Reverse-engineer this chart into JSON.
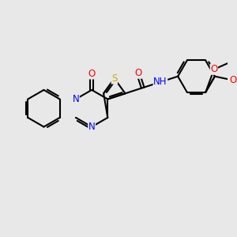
{
  "bg_color": "#e8e8e8",
  "bond_color": "#000000",
  "bond_width": 1.5,
  "atom_colors": {
    "N": "#0000ff",
    "O": "#ff0000",
    "S": "#ccaa00",
    "C": "#000000",
    "NH": "#0000ff",
    "H": "#888888"
  },
  "font_size": 8.5
}
